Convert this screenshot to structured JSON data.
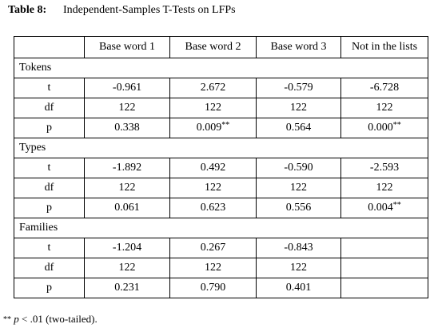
{
  "caption": {
    "label": "Table 8:",
    "title": "Independent-Samples T-Tests on LFPs"
  },
  "columns": [
    "Base word 1",
    "Base word 2",
    "Base word 3",
    "Not in the lists"
  ],
  "groups": {
    "tokens": {
      "name": "Tokens",
      "t": [
        "-0.961",
        "2.672",
        "-0.579",
        "-6.728"
      ],
      "df": [
        "122",
        "122",
        "122",
        "122"
      ],
      "p": [
        "0.338",
        "0.009",
        "0.564",
        "0.000"
      ],
      "p_marks": [
        "",
        "**",
        "",
        "**"
      ]
    },
    "types": {
      "name": "Types",
      "t": [
        "-1.892",
        "0.492",
        "-0.590",
        "-2.593"
      ],
      "df": [
        "122",
        "122",
        "122",
        "122"
      ],
      "p": [
        "0.061",
        "0.623",
        "0.556",
        "0.004"
      ],
      "p_marks": [
        "",
        "",
        "",
        "**"
      ]
    },
    "families": {
      "name": "Families",
      "t": [
        "-1.204",
        "0.267",
        "-0.843",
        ""
      ],
      "df": [
        "122",
        "122",
        "122",
        ""
      ],
      "p": [
        "0.231",
        "0.790",
        "0.401",
        ""
      ]
    }
  },
  "stat_labels": {
    "t": "t",
    "df": "df",
    "p": "p"
  },
  "footnote": {
    "marks": "**",
    "p_symbol": "p",
    "text": "< .01 (two-tailed)."
  }
}
